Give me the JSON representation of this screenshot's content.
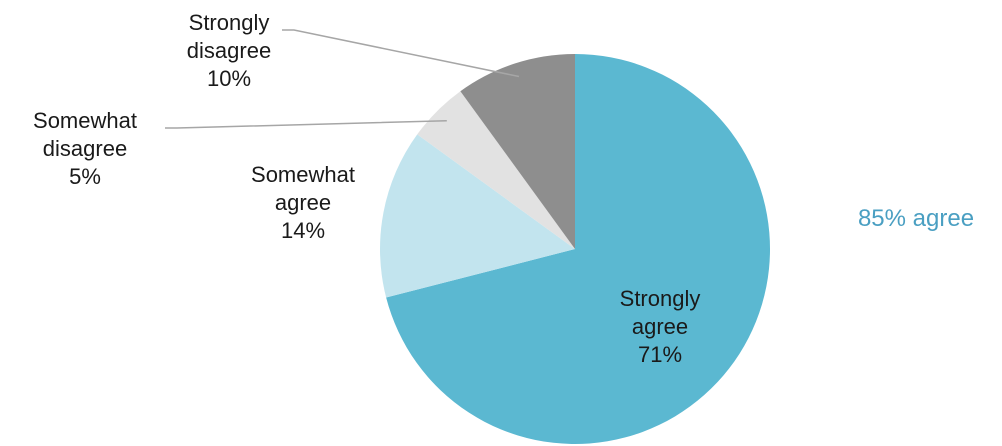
{
  "chart_data": {
    "type": "pie",
    "title": "",
    "slices": [
      {
        "name": "Strongly agree",
        "label_lines": [
          "Strongly",
          "agree",
          "71%"
        ],
        "value": 71,
        "color": "#5bb8d1"
      },
      {
        "name": "Somewhat agree",
        "label_lines": [
          "Somewhat",
          "agree",
          "14%"
        ],
        "value": 14,
        "color": "#c2e4ee"
      },
      {
        "name": "Somewhat disagree",
        "label_lines": [
          "Somewhat",
          "disagree",
          "5%"
        ],
        "value": 5,
        "color": "#e2e2e2"
      },
      {
        "name": "Strongly disagree",
        "label_lines": [
          "Strongly",
          "disagree",
          "10%"
        ],
        "value": 10,
        "color": "#8e8e8e"
      }
    ],
    "start": "12 o'clock",
    "direction": "clockwise",
    "legend": "none",
    "annotation": {
      "text": "85% agree",
      "color": "#4a9fc2"
    }
  }
}
